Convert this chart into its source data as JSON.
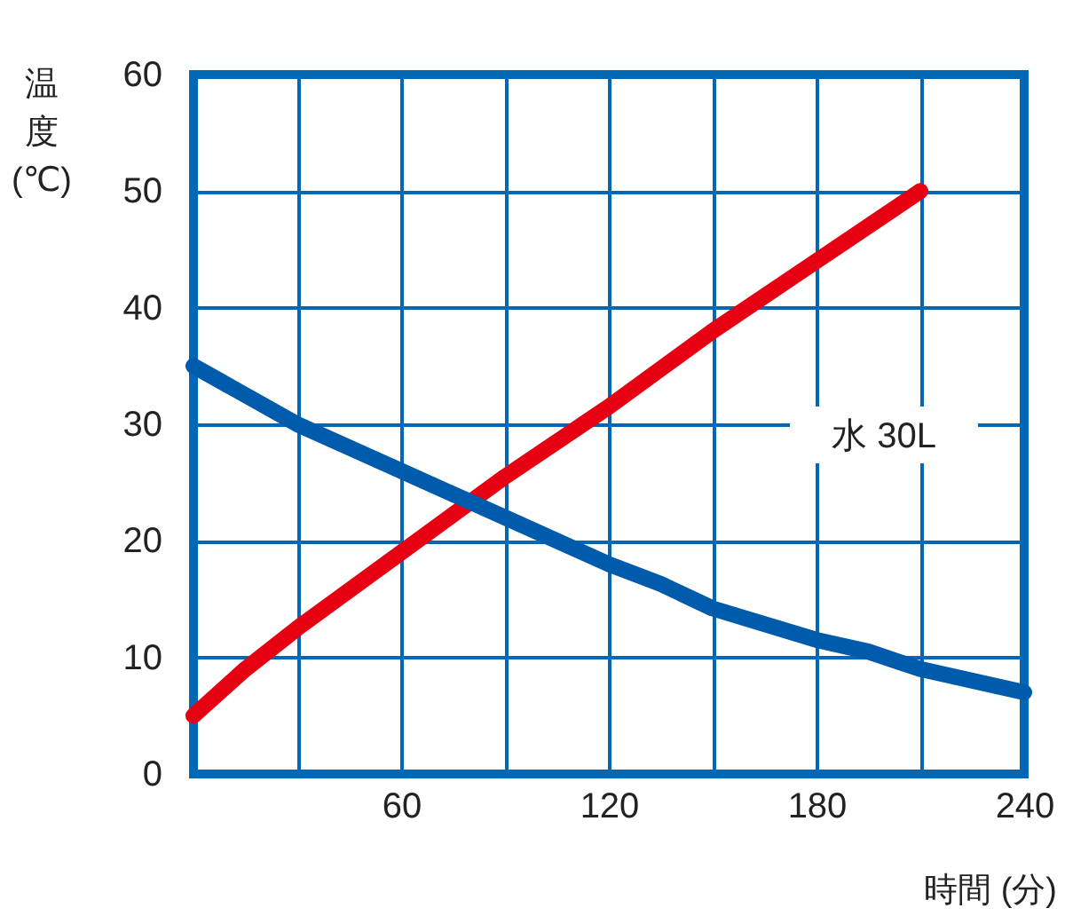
{
  "chart_data": {
    "type": "line",
    "xlabel": "時間 (分)",
    "ylabel": "温度(℃)",
    "annotations": [
      "水 30L"
    ],
    "xlim": [
      0,
      240
    ],
    "xticks": [
      {
        "value": 0,
        "label": null
      },
      {
        "value": 30,
        "label": null
      },
      60,
      {
        "value": 90,
        "label": null
      },
      120,
      {
        "value": 150,
        "label": null
      },
      180,
      {
        "value": 210,
        "label": null
      },
      240
    ],
    "ylim": [
      0,
      60
    ],
    "yticks": [
      0,
      10,
      20,
      30,
      40,
      50,
      60
    ],
    "grid": true,
    "line_style": "solid",
    "series": [
      {
        "color": "#e60012",
        "x": [
          0,
          15,
          30,
          60,
          90,
          120,
          150,
          180,
          210
        ],
        "values": [
          5,
          9,
          12.5,
          19,
          25.5,
          31.5,
          38,
          44,
          50
        ]
      },
      {
        "color": "#005bac",
        "x": [
          0,
          30,
          60,
          90,
          120,
          135,
          150,
          180,
          195,
          210,
          240
        ],
        "values": [
          35,
          30,
          26,
          22,
          18,
          16.3,
          14.2,
          11.5,
          10.5,
          9,
          7
        ]
      }
    ]
  }
}
